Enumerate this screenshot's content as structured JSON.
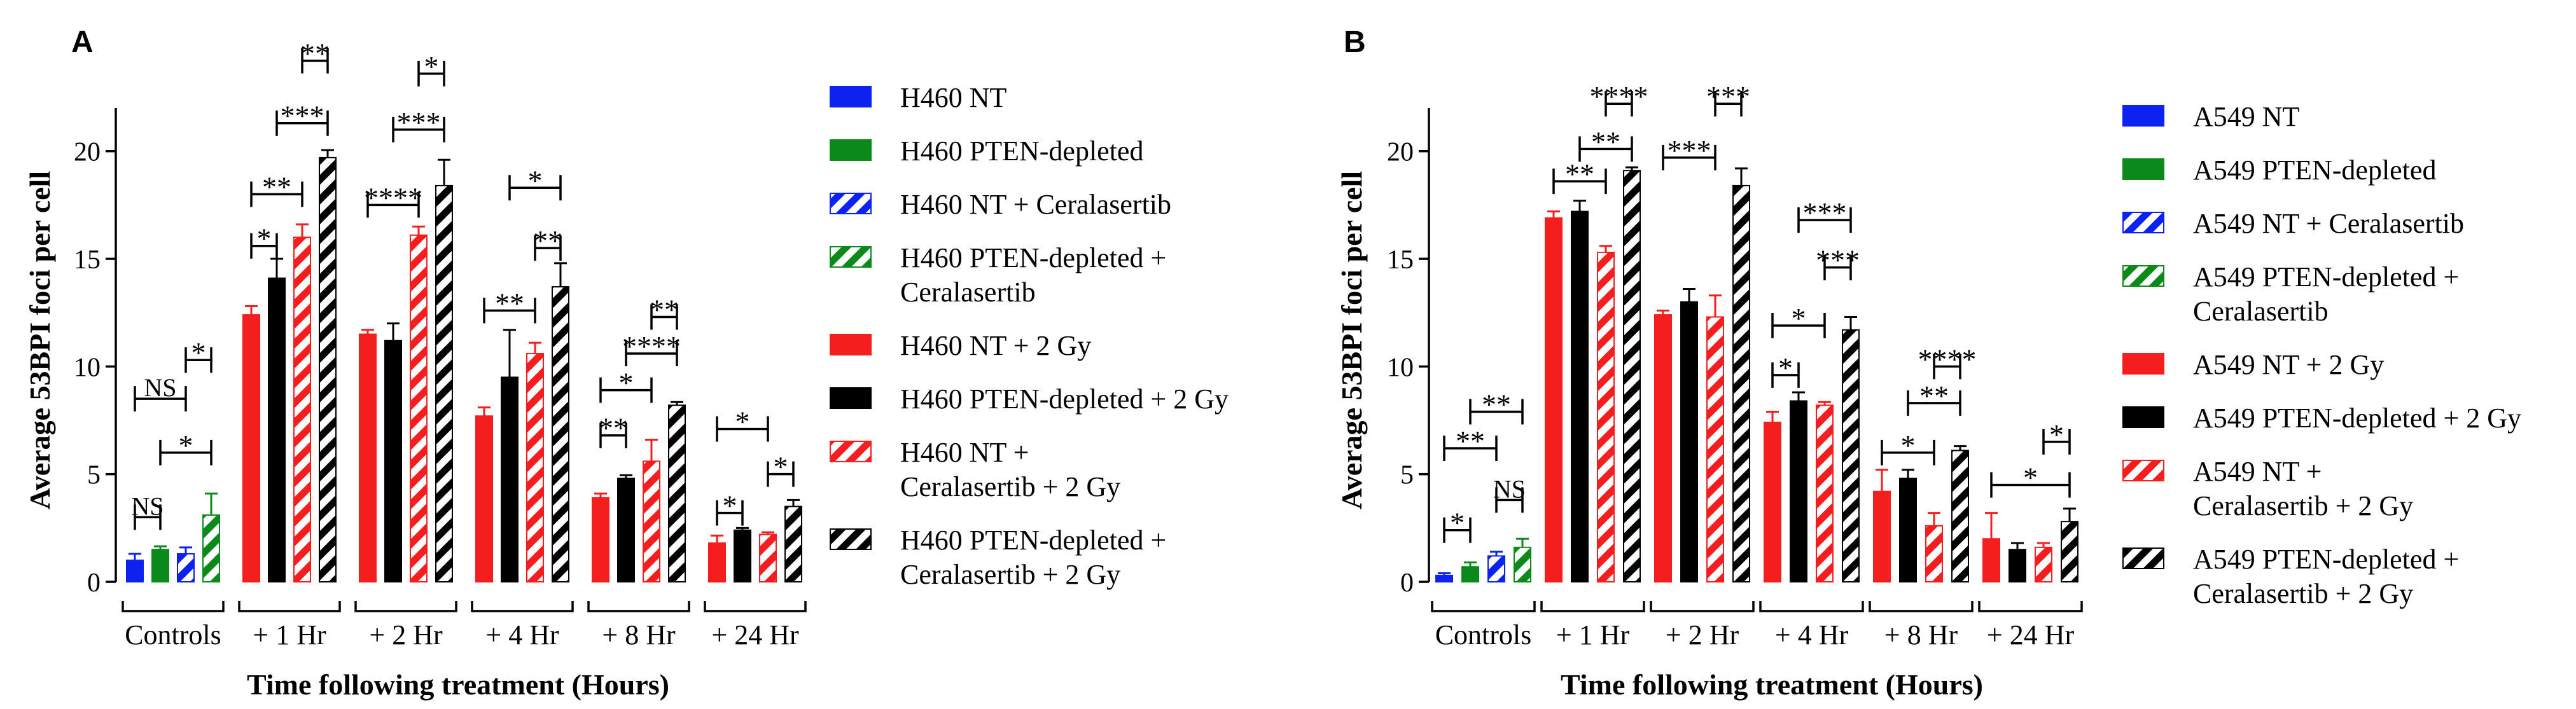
{
  "chart_data": [
    {
      "type": "bar",
      "panel": "A",
      "ylabel": "Average 53BPI foci per cell",
      "xlabel": "Time following treatment (Hours)",
      "ylim": [
        0,
        22
      ],
      "yticks": [
        "0",
        "5",
        "10",
        "15",
        "20"
      ],
      "groups": [
        {
          "label": "Controls",
          "bars": [
            {
              "series": "H460 NT",
              "value": 1.0,
              "err": 0.3
            },
            {
              "series": "H460 PTEN-depleted",
              "value": 1.5,
              "err": 0.15
            },
            {
              "series": "H460 NT + Ceralasertib",
              "value": 1.3,
              "err": 0.3
            },
            {
              "series": "H460 PTEN-depleted + Ceralasertib",
              "value": 3.1,
              "err": 1.0
            }
          ]
        },
        {
          "label": "+ 1 Hr",
          "bars": [
            {
              "series": "H460 NT + 2 Gy",
              "value": 12.4,
              "err": 0.4
            },
            {
              "series": "H460 PTEN-depleted + 2 Gy",
              "value": 14.1,
              "err": 0.9
            },
            {
              "series": "H460 NT + Ceralasertib + 2 Gy",
              "value": 16.0,
              "err": 0.6
            },
            {
              "series": "H460 PTEN-depleted + Ceralasertib + 2 Gy",
              "value": 19.7,
              "err": 0.35
            }
          ]
        },
        {
          "label": "+ 2 Hr",
          "bars": [
            {
              "series": "H460 NT + 2 Gy",
              "value": 11.5,
              "err": 0.2
            },
            {
              "series": "H460 PTEN-depleted + 2 Gy",
              "value": 11.2,
              "err": 0.8
            },
            {
              "series": "H460 NT + Ceralasertib + 2 Gy",
              "value": 16.1,
              "err": 0.4
            },
            {
              "series": "H460 PTEN-depleted + Ceralasertib + 2 Gy",
              "value": 18.4,
              "err": 1.2
            }
          ]
        },
        {
          "label": "+ 4 Hr",
          "bars": [
            {
              "series": "H460 NT + 2 Gy",
              "value": 7.7,
              "err": 0.4
            },
            {
              "series": "H460 PTEN-depleted + 2 Gy",
              "value": 9.5,
              "err": 2.2
            },
            {
              "series": "H460 NT + Ceralasertib + 2 Gy",
              "value": 10.6,
              "err": 0.5
            },
            {
              "series": "H460 PTEN-depleted + Ceralasertib + 2 Gy",
              "value": 13.7,
              "err": 1.1
            }
          ]
        },
        {
          "label": "+ 8 Hr",
          "bars": [
            {
              "series": "H460 NT + 2 Gy",
              "value": 3.9,
              "err": 0.2
            },
            {
              "series": "H460 PTEN-depleted + 2 Gy",
              "value": 4.8,
              "err": 0.15
            },
            {
              "series": "H460 NT + Ceralasertib + 2 Gy",
              "value": 5.6,
              "err": 1.0
            },
            {
              "series": "H460 PTEN-depleted + Ceralasertib + 2 Gy",
              "value": 8.2,
              "err": 0.15
            }
          ]
        },
        {
          "label": "+ 24 Hr",
          "bars": [
            {
              "series": "H460 NT + 2 Gy",
              "value": 1.8,
              "err": 0.35
            },
            {
              "series": "H460 PTEN-depleted + 2 Gy",
              "value": 2.4,
              "err": 0.1
            },
            {
              "series": "H460 NT + Ceralasertib + 2 Gy",
              "value": 2.2,
              "err": 0.1
            },
            {
              "series": "H460 PTEN-depleted + Ceralasertib + 2 Gy",
              "value": 3.5,
              "err": 0.3
            }
          ]
        }
      ],
      "significance": [
        {
          "group": 0,
          "from": 0,
          "to": 2,
          "level": 8.5,
          "label": "NS"
        },
        {
          "group": 0,
          "from": 0,
          "to": 1,
          "level": 3.0,
          "label": "NS"
        },
        {
          "group": 0,
          "from": 2,
          "to": 3,
          "level": 10.3,
          "label": "*"
        },
        {
          "group": 0,
          "from": 1,
          "to": 3,
          "level": 6.0,
          "label": "*"
        },
        {
          "group": 1,
          "from": 0,
          "to": 1,
          "level": 15.6,
          "label": "*"
        },
        {
          "group": 1,
          "from": 0,
          "to": 2,
          "level": 18.0,
          "label": "**"
        },
        {
          "group": 1,
          "from": 1,
          "to": 3,
          "level": 21.3,
          "label": "***"
        },
        {
          "group": 1,
          "from": 2,
          "to": 3,
          "level": 24.2,
          "label": "**"
        },
        {
          "group": 2,
          "from": 0,
          "to": 2,
          "level": 17.5,
          "label": "****"
        },
        {
          "group": 2,
          "from": 1,
          "to": 3,
          "level": 21.0,
          "label": "***"
        },
        {
          "group": 2,
          "from": 2,
          "to": 3,
          "level": 23.6,
          "label": "*"
        },
        {
          "group": 3,
          "from": 0,
          "to": 2,
          "level": 12.6,
          "label": "**"
        },
        {
          "group": 3,
          "from": 1,
          "to": 3,
          "level": 18.3,
          "label": "*"
        },
        {
          "group": 3,
          "from": 2,
          "to": 3,
          "level": 15.5,
          "label": "**"
        },
        {
          "group": 4,
          "from": 0,
          "to": 1,
          "level": 6.8,
          "label": "**"
        },
        {
          "group": 4,
          "from": 0,
          "to": 2,
          "level": 8.9,
          "label": "*"
        },
        {
          "group": 4,
          "from": 1,
          "to": 3,
          "level": 10.6,
          "label": "****"
        },
        {
          "group": 4,
          "from": 2,
          "to": 3,
          "level": 12.3,
          "label": "**"
        },
        {
          "group": 5,
          "from": 0,
          "to": 1,
          "level": 3.2,
          "label": "*"
        },
        {
          "group": 5,
          "from": 0,
          "to": 2,
          "level": 7.1,
          "label": "*"
        },
        {
          "group": 5,
          "from": 2,
          "to": 3,
          "level": 5.0,
          "label": "*"
        }
      ]
    },
    {
      "type": "bar",
      "panel": "B",
      "ylabel": "Average 53BPI foci per cell",
      "xlabel": "Time following treatment (Hours)",
      "ylim": [
        0,
        22
      ],
      "yticks": [
        "0",
        "5",
        "10",
        "15",
        "20"
      ],
      "groups": [
        {
          "label": "Controls",
          "bars": [
            {
              "series": "A549 NT",
              "value": 0.3,
              "err": 0.1
            },
            {
              "series": "A549 PTEN-depleted",
              "value": 0.7,
              "err": 0.2
            },
            {
              "series": "A549 NT + Ceralasertib",
              "value": 1.2,
              "err": 0.2
            },
            {
              "series": "A549 PTEN-depleted + Ceralasertib",
              "value": 1.6,
              "err": 0.4
            }
          ]
        },
        {
          "label": "+ 1 Hr",
          "bars": [
            {
              "series": "A549 NT + 2 Gy",
              "value": 16.9,
              "err": 0.3
            },
            {
              "series": "A549 PTEN-depleted + 2 Gy",
              "value": 17.2,
              "err": 0.5
            },
            {
              "series": "A549 NT + Ceralasertib + 2 Gy",
              "value": 15.3,
              "err": 0.3
            },
            {
              "series": "A549 PTEN-depleted + Ceralasertib + 2 Gy",
              "value": 19.1,
              "err": 0.15
            }
          ]
        },
        {
          "label": "+ 2 Hr",
          "bars": [
            {
              "series": "A549 NT + 2 Gy",
              "value": 12.4,
              "err": 0.2
            },
            {
              "series": "A549 PTEN-depleted + 2 Gy",
              "value": 13.0,
              "err": 0.6
            },
            {
              "series": "A549 NT + Ceralasertib + 2 Gy",
              "value": 12.3,
              "err": 1.0
            },
            {
              "series": "A549 PTEN-depleted + Ceralasertib + 2 Gy",
              "value": 18.4,
              "err": 0.8
            }
          ]
        },
        {
          "label": "+ 4 Hr",
          "bars": [
            {
              "series": "A549 NT + 2 Gy",
              "value": 7.4,
              "err": 0.5
            },
            {
              "series": "A549 PTEN-depleted + 2 Gy",
              "value": 8.4,
              "err": 0.4
            },
            {
              "series": "A549 NT + Ceralasertib + 2 Gy",
              "value": 8.2,
              "err": 0.15
            },
            {
              "series": "A549 PTEN-depleted + Ceralasertib + 2 Gy",
              "value": 11.7,
              "err": 0.6
            }
          ]
        },
        {
          "label": "+ 8 Hr",
          "bars": [
            {
              "series": "A549 NT + 2 Gy",
              "value": 4.2,
              "err": 1.0
            },
            {
              "series": "A549 PTEN-depleted + 2 Gy",
              "value": 4.8,
              "err": 0.4
            },
            {
              "series": "A549 NT + Ceralasertib + 2 Gy",
              "value": 2.6,
              "err": 0.6
            },
            {
              "series": "A549 PTEN-depleted + Ceralasertib + 2 Gy",
              "value": 6.1,
              "err": 0.2
            }
          ]
        },
        {
          "label": "+ 24 Hr",
          "bars": [
            {
              "series": "A549 NT + 2 Gy",
              "value": 2.0,
              "err": 1.2
            },
            {
              "series": "A549 PTEN-depleted + 2 Gy",
              "value": 1.5,
              "err": 0.3
            },
            {
              "series": "A549 NT + Ceralasertib + 2 Gy",
              "value": 1.6,
              "err": 0.2
            },
            {
              "series": "A549 PTEN-depleted + Ceralasertib + 2 Gy",
              "value": 2.8,
              "err": 0.6
            }
          ]
        }
      ],
      "significance": [
        {
          "group": 0,
          "from": 0,
          "to": 1,
          "level": 2.4,
          "label": "*"
        },
        {
          "group": 0,
          "from": 0,
          "to": 2,
          "level": 6.2,
          "label": "**"
        },
        {
          "group": 0,
          "from": 1,
          "to": 3,
          "level": 7.9,
          "label": "**"
        },
        {
          "group": 0,
          "from": 2,
          "to": 3,
          "level": 3.8,
          "label": "NS"
        },
        {
          "group": 1,
          "from": 0,
          "to": 2,
          "level": 18.6,
          "label": "**"
        },
        {
          "group": 1,
          "from": 1,
          "to": 3,
          "level": 20.1,
          "label": "**"
        },
        {
          "group": 1,
          "from": 2,
          "to": 3,
          "level": 22.2,
          "label": "****"
        },
        {
          "group": 2,
          "from": 0,
          "to": 2,
          "level": 19.7,
          "label": "***"
        },
        {
          "group": 2,
          "from": 2,
          "to": 3,
          "level": 22.2,
          "label": "***"
        },
        {
          "group": 3,
          "from": 0,
          "to": 1,
          "level": 9.6,
          "label": "*"
        },
        {
          "group": 3,
          "from": 0,
          "to": 2,
          "level": 11.9,
          "label": "*"
        },
        {
          "group": 3,
          "from": 2,
          "to": 3,
          "level": 14.6,
          "label": "***"
        },
        {
          "group": 3,
          "from": 1,
          "to": 3,
          "level": 16.8,
          "label": "***"
        },
        {
          "group": 4,
          "from": 0,
          "to": 2,
          "level": 6.0,
          "label": "*"
        },
        {
          "group": 4,
          "from": 1,
          "to": 3,
          "level": 8.3,
          "label": "**"
        },
        {
          "group": 4,
          "from": 2,
          "to": 3,
          "level": 10.0,
          "label": "****"
        },
        {
          "group": 5,
          "from": 0,
          "to": 3,
          "level": 4.5,
          "label": "*"
        },
        {
          "group": 5,
          "from": 2,
          "to": 3,
          "level": 6.5,
          "label": "*"
        }
      ]
    }
  ],
  "legendA": [
    {
      "lines": [
        "H460 NT"
      ],
      "color": "#0b22f2",
      "hatch": false
    },
    {
      "lines": [
        "H460 PTEN-depleted"
      ],
      "color": "#0b8a1a",
      "hatch": false
    },
    {
      "lines": [
        "H460 NT + Ceralasertib"
      ],
      "color": "#0b22f2",
      "hatch": true
    },
    {
      "lines": [
        "H460 PTEN-depleted +",
        "Ceralasertib"
      ],
      "color": "#0b8a1a",
      "hatch": true
    },
    {
      "lines": [
        "H460 NT + 2 Gy"
      ],
      "color": "#f51d1d",
      "hatch": false
    },
    {
      "lines": [
        "H460 PTEN-depleted + 2 Gy"
      ],
      "color": "#000000",
      "hatch": false
    },
    {
      "lines": [
        "H460 NT +",
        "Ceralasertib + 2 Gy"
      ],
      "color": "#f51d1d",
      "hatch": true
    },
    {
      "lines": [
        "H460 PTEN-depleted +",
        "Ceralasertib + 2 Gy"
      ],
      "color": "#000000",
      "hatch": true
    }
  ],
  "legendB": [
    {
      "lines": [
        "A549 NT"
      ],
      "color": "#0b22f2",
      "hatch": false
    },
    {
      "lines": [
        "A549 PTEN-depleted"
      ],
      "color": "#0b8a1a",
      "hatch": false
    },
    {
      "lines": [
        "A549 NT + Ceralasertib"
      ],
      "color": "#0b22f2",
      "hatch": true
    },
    {
      "lines": [
        "A549 PTEN-depleted +",
        "Ceralasertib"
      ],
      "color": "#0b8a1a",
      "hatch": true
    },
    {
      "lines": [
        "A549 NT + 2 Gy"
      ],
      "color": "#f51d1d",
      "hatch": false
    },
    {
      "lines": [
        "A549 PTEN-depleted + 2 Gy"
      ],
      "color": "#000000",
      "hatch": false
    },
    {
      "lines": [
        "A549 NT +",
        "Ceralasertib + 2 Gy"
      ],
      "color": "#f51d1d",
      "hatch": true
    },
    {
      "lines": [
        "A549 PTEN-depleted +",
        "Ceralasertib + 2 Gy"
      ],
      "color": "#000000",
      "hatch": true
    }
  ],
  "colors": {
    "blue": "#0b22f2",
    "green": "#0b8a1a",
    "red": "#f51d1d",
    "black": "#000000"
  }
}
